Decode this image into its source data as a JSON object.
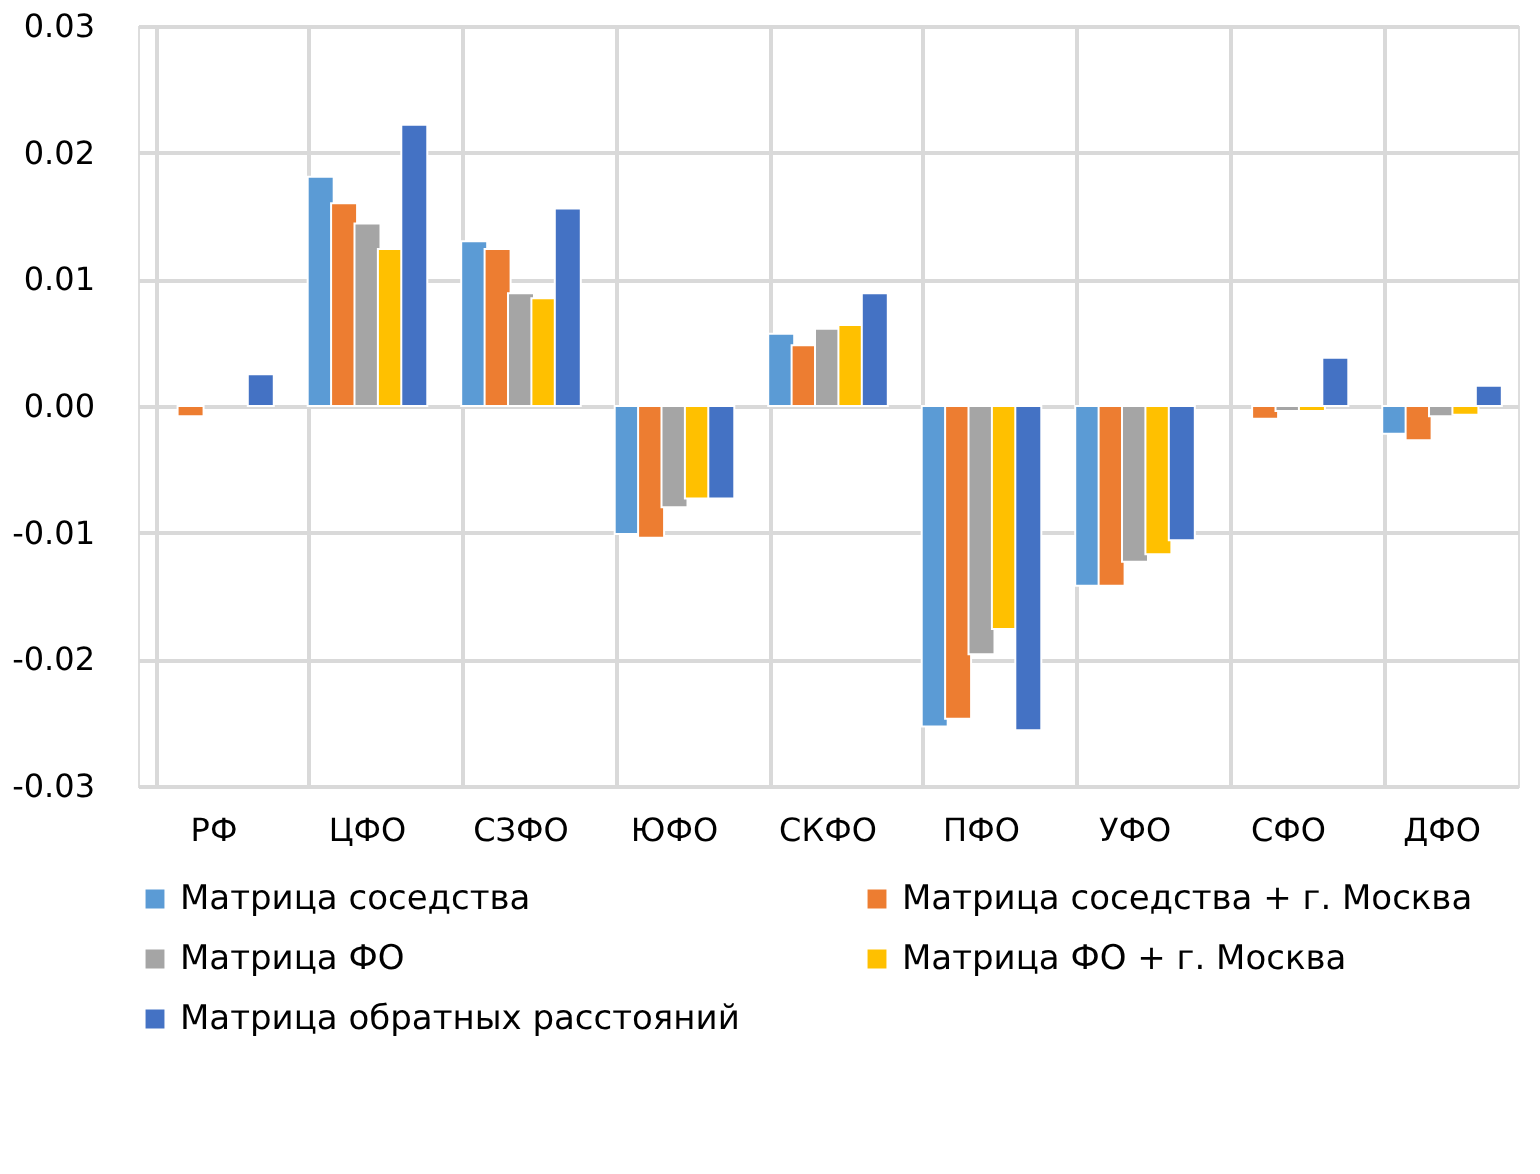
{
  "chart_data": {
    "type": "bar",
    "categories": [
      "РФ",
      "ЦФО",
      "СЗФО",
      "ЮФО",
      "СКФО",
      "ПФО",
      "УФО",
      "СФО",
      "ДФО"
    ],
    "series": [
      {
        "name": "Матрица соседства",
        "color": "#5b9bd5",
        "values": [
          null,
          0.0181,
          0.013,
          -0.0101,
          0.0057,
          -0.0253,
          -0.0142,
          null,
          -0.0022
        ]
      },
      {
        "name": "Матрица соседства + г. Москва",
        "color": "#ed7d31",
        "values": [
          -0.0008,
          0.016,
          0.0124,
          -0.0104,
          0.0048,
          -0.0247,
          -0.0142,
          -0.001,
          -0.0027
        ]
      },
      {
        "name": "Матрица ФО",
        "color": "#a5a5a5",
        "values": [
          null,
          0.0144,
          0.0089,
          -0.008,
          0.0061,
          -0.0196,
          -0.0123,
          -0.0004,
          -0.0008
        ]
      },
      {
        "name": "Матрица ФО + г. Москва",
        "color": "#ffc000",
        "values": [
          null,
          0.0124,
          0.0085,
          -0.0073,
          0.0064,
          -0.0176,
          -0.0117,
          -0.0004,
          -0.0007
        ]
      },
      {
        "name": "Матрица обратных расстояний",
        "color": "#4472c4",
        "values": [
          0.0025,
          0.0222,
          0.0156,
          -0.0073,
          0.0089,
          -0.0256,
          -0.0106,
          0.0038,
          0.0016
        ]
      }
    ],
    "ylim": [
      -0.03,
      0.03
    ],
    "yticks": [
      {
        "value": -0.03,
        "label": "-0.03"
      },
      {
        "value": -0.02,
        "label": "-0.02"
      },
      {
        "value": -0.01,
        "label": "-0.01"
      },
      {
        "value": 0,
        "label": "0.00"
      },
      {
        "value": 0.01,
        "label": "0.01"
      },
      {
        "value": 0.02,
        "label": "0.02"
      },
      {
        "value": 0.03,
        "label": "0.03"
      }
    ],
    "grid": true,
    "legend": "bottom"
  }
}
